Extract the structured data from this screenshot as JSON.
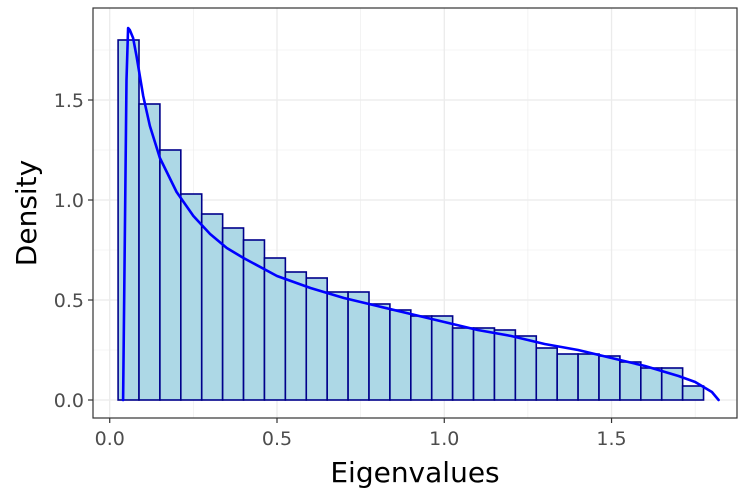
{
  "chart_data": {
    "type": "bar",
    "subtype": "histogram-with-density-curve",
    "title": "",
    "xlabel": "Eigenvalues",
    "ylabel": "Density",
    "xlim": [
      -0.05,
      1.875
    ],
    "ylim": [
      -0.09,
      1.96
    ],
    "x_ticks": [
      0.0,
      0.5,
      1.0,
      1.5
    ],
    "x_tick_labels": [
      "0.0",
      "0.5",
      "1.0",
      "1.5"
    ],
    "y_ticks": [
      0.0,
      0.5,
      1.0,
      1.5
    ],
    "y_tick_labels": [
      "0.0",
      "0.5",
      "1.0",
      "1.5"
    ],
    "grid": true,
    "legend": "none",
    "colors": {
      "bar_fill": "#add8e6",
      "bar_outline": "#00008b",
      "curve": "#0000ff",
      "grid": "#ebebeb",
      "panel_border": "#333333"
    },
    "bins": {
      "width": 0.0625,
      "edges_start": 0.0625,
      "values": [
        1.8,
        1.48,
        1.25,
        1.03,
        0.93,
        0.86,
        0.8,
        0.71,
        0.64,
        0.61,
        0.54,
        0.54,
        0.48,
        0.45,
        0.42,
        0.42,
        0.36,
        0.36,
        0.35,
        0.32,
        0.26,
        0.23,
        0.23,
        0.22,
        0.19,
        0.16,
        0.16,
        0.07
      ]
    },
    "series": [
      {
        "type": "line",
        "x": [
          0.04,
          0.045,
          0.05,
          0.055,
          0.06,
          0.07,
          0.08,
          0.1,
          0.12,
          0.15,
          0.2,
          0.25,
          0.3,
          0.35,
          0.4,
          0.5,
          0.6,
          0.7,
          0.8,
          0.9,
          1.0,
          1.1,
          1.2,
          1.3,
          1.4,
          1.5,
          1.6,
          1.7,
          1.75,
          1.78,
          1.8,
          1.82
        ],
        "y": [
          0.0,
          0.8,
          1.6,
          1.86,
          1.85,
          1.81,
          1.72,
          1.52,
          1.37,
          1.21,
          1.04,
          0.92,
          0.83,
          0.76,
          0.71,
          0.62,
          0.56,
          0.51,
          0.47,
          0.43,
          0.39,
          0.35,
          0.32,
          0.28,
          0.25,
          0.21,
          0.17,
          0.12,
          0.09,
          0.06,
          0.04,
          0.0
        ]
      }
    ]
  }
}
